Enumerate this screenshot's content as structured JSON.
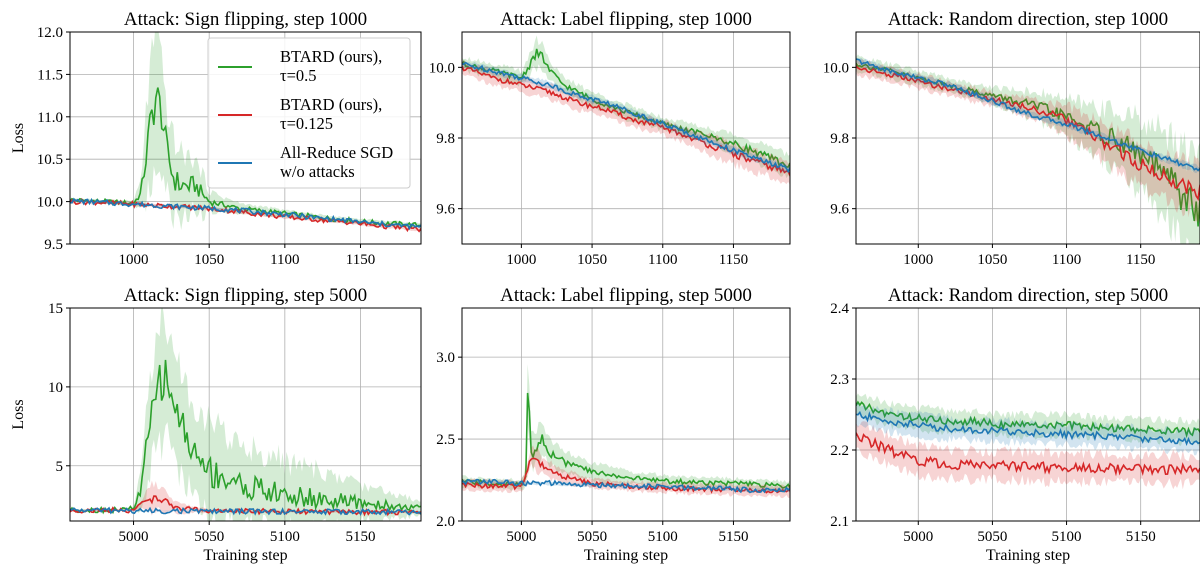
{
  "colors": {
    "btard_05": "#2ca02c",
    "btard_0125": "#d62728",
    "allreduce": "#1f77b4",
    "grid": "#b0b0b0"
  },
  "legend": {
    "placement": "upper-right of first panel",
    "entries": [
      {
        "key": "btard_05",
        "lines": [
          "BTARD (ours),",
          "τ=0.5"
        ]
      },
      {
        "key": "btard_0125",
        "lines": [
          "BTARD (ours),",
          "τ=0.125"
        ]
      },
      {
        "key": "allreduce",
        "lines": [
          "All-Reduce SGD",
          "w/o attacks"
        ]
      }
    ]
  },
  "chart_data": [
    {
      "type": "line",
      "title": "Attack: Sign flipping, step 1000",
      "ylabel": "Loss",
      "xlabel": "",
      "xlim": [
        958,
        1190
      ],
      "ylim": [
        9.5,
        12.0
      ],
      "xticks": [
        1000,
        1050,
        1100,
        1150
      ],
      "yticks": [
        9.5,
        10.0,
        10.5,
        11.0,
        11.5,
        12.0
      ],
      "ytick_labels": [
        "9.5",
        "10.0",
        "10.5",
        "11.0",
        "11.5",
        "12.0"
      ],
      "series": [
        {
          "key": "btard_05",
          "x": [
            958,
            980,
            1000,
            1005,
            1008,
            1012,
            1015,
            1018,
            1022,
            1026,
            1030,
            1035,
            1040,
            1045,
            1050,
            1070,
            1100,
            1130,
            1160,
            1190
          ],
          "values": [
            10.02,
            10.0,
            9.98,
            10.1,
            10.5,
            11.0,
            11.25,
            11.1,
            10.6,
            10.3,
            10.2,
            10.18,
            10.2,
            10.1,
            10.0,
            9.92,
            9.86,
            9.8,
            9.75,
            9.72
          ],
          "band": [
            0.02,
            0.02,
            0.03,
            0.15,
            0.5,
            0.75,
            0.7,
            0.6,
            0.5,
            0.45,
            0.4,
            0.35,
            0.3,
            0.25,
            0.12,
            0.06,
            0.04,
            0.03,
            0.03,
            0.03
          ]
        },
        {
          "key": "btard_0125",
          "x": [
            958,
            980,
            1000,
            1020,
            1040,
            1060,
            1080,
            1100,
            1120,
            1140,
            1160,
            1190
          ],
          "values": [
            10.0,
            9.99,
            9.97,
            9.95,
            9.93,
            9.9,
            9.86,
            9.82,
            9.79,
            9.76,
            9.72,
            9.67
          ],
          "band": [
            0.02,
            0.02,
            0.02,
            0.02,
            0.02,
            0.02,
            0.02,
            0.02,
            0.02,
            0.02,
            0.02,
            0.02
          ]
        },
        {
          "key": "allreduce",
          "x": [
            958,
            980,
            1000,
            1020,
            1040,
            1060,
            1080,
            1100,
            1120,
            1140,
            1160,
            1190
          ],
          "values": [
            10.01,
            9.99,
            9.97,
            9.95,
            9.93,
            9.91,
            9.88,
            9.85,
            9.81,
            9.78,
            9.74,
            9.7
          ],
          "band": [
            0.01,
            0.01,
            0.01,
            0.01,
            0.01,
            0.01,
            0.01,
            0.01,
            0.01,
            0.01,
            0.01,
            0.01
          ]
        }
      ]
    },
    {
      "type": "line",
      "title": "Attack: Label flipping, step 1000",
      "ylabel": "",
      "xlabel": "",
      "xlim": [
        958,
        1190
      ],
      "ylim": [
        9.5,
        10.1
      ],
      "xticks": [
        1000,
        1050,
        1100,
        1150
      ],
      "yticks": [
        9.6,
        9.8,
        10.0
      ],
      "ytick_labels": [
        "9.6",
        "9.8",
        "10.0"
      ],
      "series": [
        {
          "key": "btard_05",
          "x": [
            958,
            980,
            1000,
            1005,
            1010,
            1015,
            1020,
            1030,
            1050,
            1070,
            1100,
            1130,
            1160,
            1190
          ],
          "values": [
            10.01,
            9.99,
            9.97,
            10.0,
            10.04,
            10.03,
            9.99,
            9.95,
            9.91,
            9.88,
            9.84,
            9.81,
            9.77,
            9.72
          ],
          "band": [
            0.02,
            0.02,
            0.02,
            0.03,
            0.04,
            0.04,
            0.03,
            0.02,
            0.02,
            0.02,
            0.02,
            0.02,
            0.03,
            0.03
          ]
        },
        {
          "key": "btard_0125",
          "x": [
            958,
            980,
            1000,
            1020,
            1040,
            1060,
            1080,
            1100,
            1120,
            1140,
            1160,
            1190
          ],
          "values": [
            10.0,
            9.97,
            9.95,
            9.93,
            9.9,
            9.88,
            9.85,
            9.83,
            9.8,
            9.77,
            9.74,
            9.7
          ],
          "band": [
            0.02,
            0.02,
            0.02,
            0.02,
            0.02,
            0.02,
            0.02,
            0.02,
            0.02,
            0.03,
            0.03,
            0.03
          ]
        },
        {
          "key": "allreduce",
          "x": [
            958,
            980,
            1000,
            1020,
            1040,
            1060,
            1080,
            1100,
            1120,
            1140,
            1160,
            1190
          ],
          "values": [
            10.01,
            9.99,
            9.97,
            9.95,
            9.92,
            9.9,
            9.87,
            9.84,
            9.81,
            9.78,
            9.75,
            9.71
          ],
          "band": [
            0.01,
            0.01,
            0.01,
            0.01,
            0.01,
            0.01,
            0.01,
            0.01,
            0.01,
            0.01,
            0.01,
            0.01
          ]
        }
      ]
    },
    {
      "type": "line",
      "title": "Attack: Random direction, step 1000",
      "ylabel": "",
      "xlabel": "",
      "xlim": [
        958,
        1190
      ],
      "ylim": [
        9.5,
        10.1
      ],
      "xticks": [
        1000,
        1050,
        1100,
        1150
      ],
      "yticks": [
        9.6,
        9.8,
        10.0
      ],
      "ytick_labels": [
        "9.6",
        "9.8",
        "10.0"
      ],
      "series": [
        {
          "key": "btard_05",
          "x": [
            958,
            980,
            1000,
            1020,
            1040,
            1060,
            1080,
            1100,
            1120,
            1140,
            1160,
            1170,
            1180,
            1190
          ],
          "values": [
            10.01,
            9.99,
            9.97,
            9.95,
            9.93,
            9.91,
            9.89,
            9.86,
            9.82,
            9.78,
            9.72,
            9.68,
            9.63,
            9.58
          ],
          "band": [
            0.02,
            0.02,
            0.02,
            0.02,
            0.02,
            0.03,
            0.04,
            0.05,
            0.07,
            0.09,
            0.11,
            0.13,
            0.15,
            0.16
          ]
        },
        {
          "key": "btard_0125",
          "x": [
            958,
            980,
            1000,
            1020,
            1040,
            1060,
            1080,
            1100,
            1120,
            1140,
            1160,
            1190
          ],
          "values": [
            10.0,
            9.98,
            9.96,
            9.94,
            9.92,
            9.9,
            9.88,
            9.85,
            9.8,
            9.75,
            9.7,
            9.65
          ],
          "band": [
            0.02,
            0.02,
            0.02,
            0.02,
            0.02,
            0.02,
            0.03,
            0.04,
            0.05,
            0.06,
            0.06,
            0.07
          ]
        },
        {
          "key": "allreduce",
          "x": [
            958,
            980,
            1000,
            1020,
            1040,
            1060,
            1080,
            1100,
            1120,
            1140,
            1160,
            1190
          ],
          "values": [
            10.02,
            9.99,
            9.97,
            9.95,
            9.92,
            9.89,
            9.86,
            9.84,
            9.81,
            9.78,
            9.75,
            9.71
          ],
          "band": [
            0.01,
            0.01,
            0.01,
            0.01,
            0.01,
            0.01,
            0.01,
            0.01,
            0.01,
            0.01,
            0.01,
            0.01
          ]
        }
      ]
    },
    {
      "type": "line",
      "title": "Attack: Sign flipping, step 5000",
      "ylabel": "Loss",
      "xlabel": "Training step",
      "xlim": [
        4958,
        5190
      ],
      "ylim": [
        1.5,
        15.0
      ],
      "xticks": [
        5000,
        5050,
        5100,
        5150
      ],
      "yticks": [
        5,
        10,
        15
      ],
      "ytick_labels": [
        "5",
        "10",
        "15"
      ],
      "series": [
        {
          "key": "btard_05",
          "x": [
            4958,
            4990,
            5000,
            5005,
            5010,
            5015,
            5020,
            5025,
            5030,
            5040,
            5050,
            5070,
            5100,
            5130,
            5160,
            5190
          ],
          "values": [
            2.2,
            2.2,
            2.3,
            3.5,
            7.0,
            9.8,
            10.7,
            9.7,
            8.0,
            5.8,
            4.7,
            3.8,
            3.1,
            2.8,
            2.55,
            2.3
          ],
          "band": [
            0.05,
            0.05,
            0.1,
            1.2,
            3.0,
            3.8,
            3.8,
            3.6,
            3.3,
            3.1,
            3.0,
            2.6,
            2.2,
            1.6,
            1.0,
            0.5
          ]
        },
        {
          "key": "btard_0125",
          "x": [
            4958,
            5000,
            5005,
            5010,
            5015,
            5020,
            5025,
            5030,
            5040,
            5050,
            5100,
            5190
          ],
          "values": [
            2.15,
            2.2,
            2.5,
            2.9,
            3.0,
            2.8,
            2.5,
            2.3,
            2.2,
            2.15,
            2.1,
            2.05
          ],
          "band": [
            0.05,
            0.05,
            0.3,
            0.7,
            1.0,
            0.6,
            0.4,
            0.3,
            0.2,
            0.1,
            0.05,
            0.05
          ]
        },
        {
          "key": "allreduce",
          "x": [
            4958,
            5000,
            5050,
            5100,
            5150,
            5190
          ],
          "values": [
            2.2,
            2.15,
            2.12,
            2.1,
            2.08,
            2.05
          ],
          "band": [
            0.02,
            0.02,
            0.02,
            0.02,
            0.02,
            0.02
          ]
        }
      ]
    },
    {
      "type": "line",
      "title": "Attack: Label flipping, step 5000",
      "ylabel": "",
      "xlabel": "Training step",
      "xlim": [
        4958,
        5190
      ],
      "ylim": [
        2.0,
        3.3
      ],
      "xticks": [
        5000,
        5050,
        5100,
        5150
      ],
      "yticks": [
        2.0,
        2.5,
        3.0
      ],
      "ytick_labels": [
        "2.0",
        "2.5",
        "3.0"
      ],
      "series": [
        {
          "key": "btard_05",
          "x": [
            4958,
            4980,
            5000,
            5003,
            5005,
            5006,
            5008,
            5010,
            5015,
            5020,
            5030,
            5050,
            5080,
            5110,
            5150,
            5190
          ],
          "values": [
            2.24,
            2.23,
            2.22,
            2.25,
            3.0,
            2.5,
            2.42,
            2.45,
            2.5,
            2.42,
            2.36,
            2.3,
            2.26,
            2.24,
            2.23,
            2.21
          ],
          "band": [
            0.03,
            0.03,
            0.03,
            0.05,
            0.2,
            0.15,
            0.1,
            0.1,
            0.1,
            0.08,
            0.06,
            0.05,
            0.04,
            0.03,
            0.03,
            0.03
          ]
        },
        {
          "key": "btard_0125",
          "x": [
            4958,
            5000,
            5004,
            5007,
            5012,
            5020,
            5030,
            5050,
            5080,
            5110,
            5150,
            5190
          ],
          "values": [
            2.22,
            2.21,
            2.3,
            2.4,
            2.36,
            2.31,
            2.27,
            2.23,
            2.21,
            2.2,
            2.19,
            2.18
          ],
          "band": [
            0.03,
            0.03,
            0.05,
            0.07,
            0.06,
            0.05,
            0.04,
            0.03,
            0.03,
            0.03,
            0.03,
            0.03
          ]
        },
        {
          "key": "allreduce",
          "x": [
            4958,
            4980,
            5000,
            5020,
            5040,
            5060,
            5080,
            5100,
            5120,
            5140,
            5160,
            5190
          ],
          "values": [
            2.24,
            2.24,
            2.23,
            2.23,
            2.22,
            2.22,
            2.21,
            2.21,
            2.2,
            2.2,
            2.19,
            2.19
          ],
          "band": [
            0.01,
            0.01,
            0.01,
            0.01,
            0.01,
            0.01,
            0.01,
            0.01,
            0.01,
            0.01,
            0.01,
            0.01
          ]
        }
      ]
    },
    {
      "type": "line",
      "title": "Attack: Random direction, step 5000",
      "ylabel": "",
      "xlabel": "Training step",
      "xlim": [
        4958,
        5190
      ],
      "ylim": [
        2.1,
        2.4
      ],
      "xticks": [
        5000,
        5050,
        5100,
        5150
      ],
      "yticks": [
        2.1,
        2.2,
        2.3,
        2.4
      ],
      "ytick_labels": [
        "2.1",
        "2.2",
        "2.3",
        "2.4"
      ],
      "series": [
        {
          "key": "btard_05",
          "x": [
            4958,
            4980,
            5000,
            5020,
            5040,
            5060,
            5080,
            5100,
            5120,
            5140,
            5160,
            5190
          ],
          "values": [
            2.265,
            2.25,
            2.245,
            2.24,
            2.24,
            2.235,
            2.235,
            2.235,
            2.232,
            2.23,
            2.228,
            2.225
          ],
          "band": [
            0.015,
            0.015,
            0.015,
            0.015,
            0.015,
            0.015,
            0.015,
            0.015,
            0.015,
            0.015,
            0.015,
            0.015
          ]
        },
        {
          "key": "btard_0125",
          "x": [
            4958,
            4980,
            5000,
            5020,
            5040,
            5060,
            5080,
            5100,
            5120,
            5140,
            5160,
            5190
          ],
          "values": [
            2.22,
            2.2,
            2.185,
            2.18,
            2.178,
            2.178,
            2.176,
            2.175,
            2.175,
            2.174,
            2.173,
            2.172
          ],
          "band": [
            0.02,
            0.02,
            0.02,
            0.02,
            0.02,
            0.02,
            0.02,
            0.02,
            0.02,
            0.02,
            0.02,
            0.02
          ]
        },
        {
          "key": "allreduce",
          "x": [
            4958,
            4980,
            5000,
            5020,
            5040,
            5060,
            5080,
            5100,
            5120,
            5140,
            5160,
            5190
          ],
          "values": [
            2.25,
            2.24,
            2.235,
            2.23,
            2.228,
            2.226,
            2.224,
            2.222,
            2.22,
            2.218,
            2.215,
            2.212
          ],
          "band": [
            0.015,
            0.015,
            0.015,
            0.015,
            0.015,
            0.015,
            0.015,
            0.015,
            0.015,
            0.015,
            0.015,
            0.015
          ]
        }
      ]
    }
  ]
}
